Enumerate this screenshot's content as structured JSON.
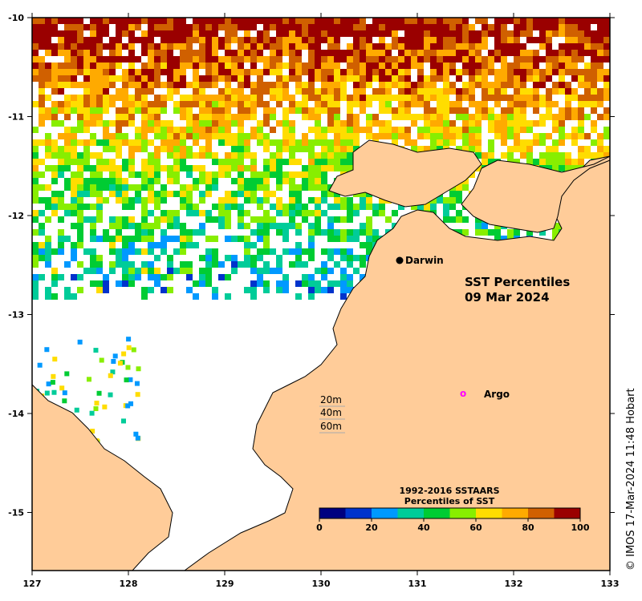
{
  "map": {
    "title_line1": "SST Percentiles",
    "title_line2": "09 Mar 2024",
    "lon_ticks": [
      "127",
      "128",
      "129",
      "130",
      "131",
      "132",
      "133"
    ],
    "lat_ticks": [
      "-10",
      "-11",
      "-12",
      "-13",
      "-14",
      "-15"
    ],
    "city": "Darwin",
    "argo_label": "Argo",
    "argo_marker": "o",
    "depth_labels": [
      "20m",
      "40m",
      "60m"
    ],
    "colorbar": {
      "title_line1": "1992-2016 SSTAARS",
      "title_line2": "Percentiles of SST",
      "tick_labels": [
        "0",
        "20",
        "40",
        "60",
        "80",
        "100"
      ],
      "colors": [
        "#000080",
        "#0033cc",
        "#0099ff",
        "#00cc99",
        "#00cc33",
        "#88ee00",
        "#ffdd00",
        "#ffaa00",
        "#d06000",
        "#9a0000"
      ]
    },
    "credit": "© IMOS 17-Mar-2024 11:48 Hobart",
    "colors": {
      "land": "#ffcc99",
      "no_data": "#ffffff"
    }
  }
}
